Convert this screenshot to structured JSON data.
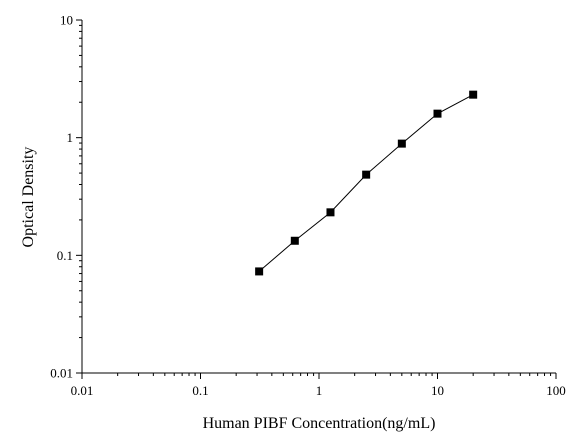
{
  "chart_data": {
    "type": "scatter",
    "title": "",
    "xlabel": "Human PIBF Concentration(ng/mL)",
    "ylabel": "Optical Density",
    "xscale": "log",
    "yscale": "log",
    "xlim": [
      0.01,
      100
    ],
    "ylim": [
      0.01,
      10
    ],
    "grid": false,
    "legend": "none",
    "x_ticks": [
      "0.01",
      "0.1",
      "1",
      "10",
      "100"
    ],
    "y_ticks": [
      "0.01",
      "0.1",
      "1",
      "10"
    ],
    "series": [
      {
        "marker": "square",
        "line": "connected",
        "color": "#000000",
        "points": [
          {
            "x": 0.3125,
            "y": 0.073
          },
          {
            "x": 0.625,
            "y": 0.133
          },
          {
            "x": 1.25,
            "y": 0.232
          },
          {
            "x": 2.5,
            "y": 0.485
          },
          {
            "x": 5,
            "y": 0.89
          },
          {
            "x": 10,
            "y": 1.6
          },
          {
            "x": 20,
            "y": 2.32
          }
        ]
      }
    ]
  }
}
